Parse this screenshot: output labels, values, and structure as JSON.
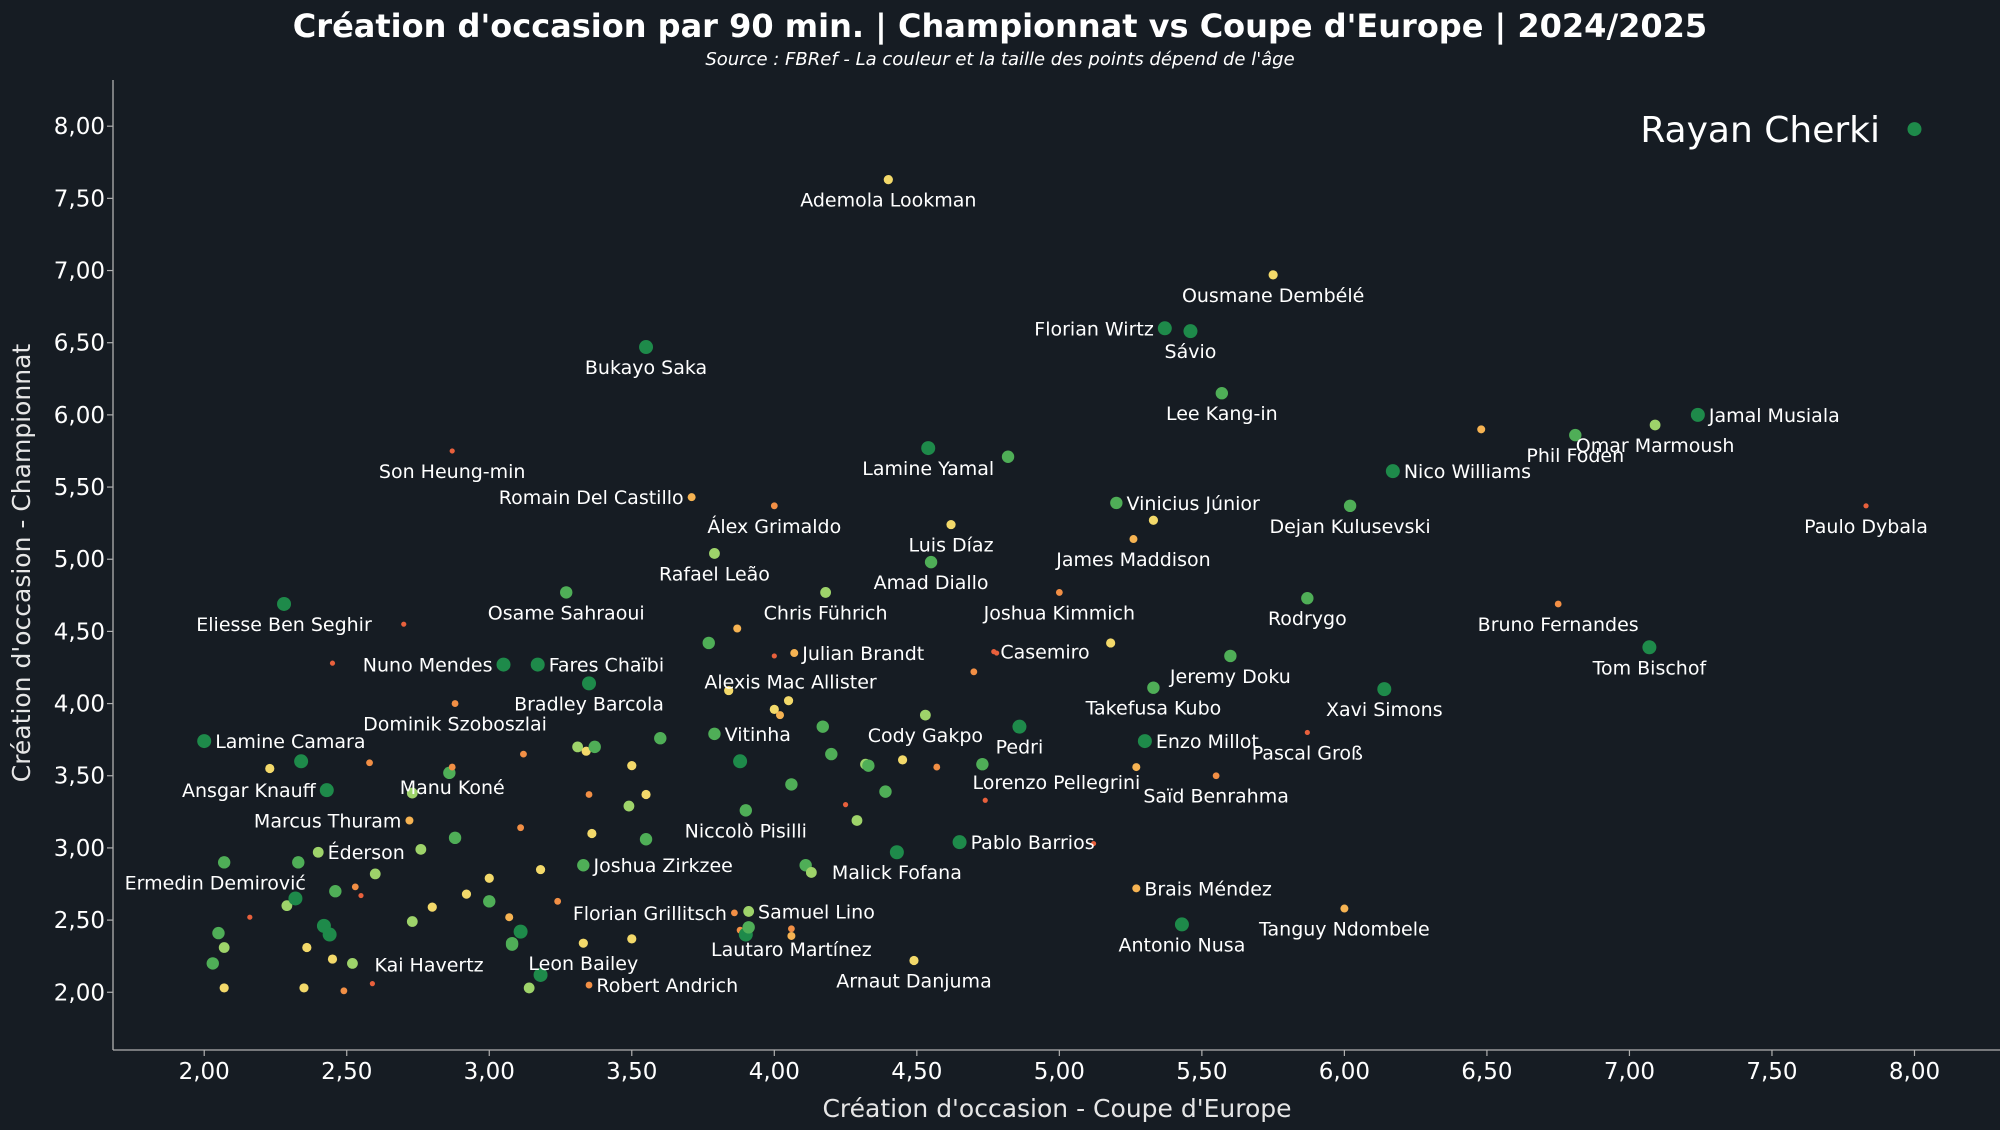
{
  "colors": {
    "background": "#161c23",
    "axis": "#b0b0b0",
    "text": "#ffffff"
  },
  "age_colors": [
    "#1e8a4a",
    "#4fae57",
    "#9ed36a",
    "#f3d96a",
    "#f6b352",
    "#f28f45",
    "#e8603c"
  ],
  "chart_data": {
    "type": "scatter",
    "title": "Création d'occasion par 90 min. | Championnat vs Coupe d'Europe | 2024/2025",
    "subtitle": "Source : FBRef - La couleur et la taille des points dépend de l'âge",
    "xlabel": "Création d'occasion - Coupe d'Europe",
    "ylabel": "Création d'occasion - Championnat",
    "xlim": [
      1.68,
      8.3
    ],
    "ylim": [
      1.6,
      8.32
    ],
    "xticks": [
      {
        "v": 2.0,
        "label": "2,00"
      },
      {
        "v": 2.5,
        "label": "2,50"
      },
      {
        "v": 3.0,
        "label": "3,00"
      },
      {
        "v": 3.5,
        "label": "3,50"
      },
      {
        "v": 4.0,
        "label": "4,00"
      },
      {
        "v": 4.5,
        "label": "4,50"
      },
      {
        "v": 5.0,
        "label": "5,00"
      },
      {
        "v": 5.5,
        "label": "5,50"
      },
      {
        "v": 6.0,
        "label": "6,00"
      },
      {
        "v": 6.5,
        "label": "6,50"
      },
      {
        "v": 7.0,
        "label": "7,00"
      },
      {
        "v": 7.5,
        "label": "7,50"
      },
      {
        "v": 8.0,
        "label": "8,00"
      }
    ],
    "yticks": [
      {
        "v": 2.0,
        "label": "2,00"
      },
      {
        "v": 2.5,
        "label": "2,50"
      },
      {
        "v": 3.0,
        "label": "3,00"
      },
      {
        "v": 3.5,
        "label": "3,50"
      },
      {
        "v": 4.0,
        "label": "4,00"
      },
      {
        "v": 4.5,
        "label": "4,50"
      },
      {
        "v": 5.0,
        "label": "5,00"
      },
      {
        "v": 5.5,
        "label": "5,50"
      },
      {
        "v": 6.0,
        "label": "6,00"
      },
      {
        "v": 6.5,
        "label": "6,50"
      },
      {
        "v": 7.0,
        "label": "7,00"
      },
      {
        "v": 7.5,
        "label": "7,50"
      },
      {
        "v": 8.0,
        "label": "8,00"
      }
    ],
    "legend": {
      "label": "Rayan Cherki",
      "x": 8.0,
      "y": 7.98,
      "age": 0
    },
    "labeled_points": [
      {
        "name": "Ademola Lookman",
        "x": 4.4,
        "y": 7.63,
        "age": 3,
        "anchor": "below"
      },
      {
        "name": "Ousmane Dembélé",
        "x": 5.75,
        "y": 6.97,
        "age": 3,
        "anchor": "below"
      },
      {
        "name": "Florian Wirtz",
        "x": 5.37,
        "y": 6.6,
        "age": 0,
        "anchor": "left"
      },
      {
        "name": "Sávio",
        "x": 5.46,
        "y": 6.58,
        "age": 0,
        "anchor": "below"
      },
      {
        "name": "Bukayo Saka",
        "x": 3.55,
        "y": 6.47,
        "age": 0,
        "anchor": "below"
      },
      {
        "name": "Lee Kang-in",
        "x": 5.57,
        "y": 6.15,
        "age": 1,
        "anchor": "below"
      },
      {
        "name": "Jamal Musiala",
        "x": 7.24,
        "y": 6.0,
        "age": 0,
        "anchor": "right"
      },
      {
        "name": "Phil Foden",
        "x": 6.81,
        "y": 5.86,
        "age": 1,
        "anchor": "below"
      },
      {
        "name": "Omar Marmoush",
        "x": 7.09,
        "y": 5.93,
        "age": 2,
        "anchor": "below"
      },
      {
        "name": "Son Heung-min",
        "x": 2.87,
        "y": 5.75,
        "age": 6,
        "anchor": "below"
      },
      {
        "name": "Lamine Yamal",
        "x": 4.54,
        "y": 5.77,
        "age": 0,
        "anchor": "below"
      },
      {
        "name": "Nico Williams",
        "x": 6.17,
        "y": 5.61,
        "age": 0,
        "anchor": "right"
      },
      {
        "name": "Romain Del Castillo",
        "x": 3.71,
        "y": 5.43,
        "age": 4,
        "anchor": "left"
      },
      {
        "name": "Vinicius Júnior",
        "x": 5.2,
        "y": 5.39,
        "age": 1,
        "anchor": "right"
      },
      {
        "name": "Dejan Kulusevski",
        "x": 6.02,
        "y": 5.37,
        "age": 1,
        "anchor": "below"
      },
      {
        "name": "Paulo Dybala",
        "x": 7.83,
        "y": 5.37,
        "age": 6,
        "anchor": "below"
      },
      {
        "name": "Álex Grimaldo",
        "x": 4.0,
        "y": 5.37,
        "age": 5,
        "anchor": "below"
      },
      {
        "name": "Luis Díaz",
        "x": 4.62,
        "y": 5.24,
        "age": 3,
        "anchor": "below"
      },
      {
        "name": "James Maddison",
        "x": 5.26,
        "y": 5.14,
        "age": 4,
        "anchor": "below"
      },
      {
        "name": "Rafael Leão",
        "x": 3.79,
        "y": 5.04,
        "age": 2,
        "anchor": "below"
      },
      {
        "name": "Amad Diallo",
        "x": 4.55,
        "y": 4.98,
        "age": 1,
        "anchor": "below"
      },
      {
        "name": "Chris Führich",
        "x": 4.18,
        "y": 4.77,
        "age": 2,
        "anchor": "below"
      },
      {
        "name": "Osame Sahraoui",
        "x": 3.27,
        "y": 4.77,
        "age": 1,
        "anchor": "below"
      },
      {
        "name": "Joshua Kimmich",
        "x": 5.0,
        "y": 4.77,
        "age": 5,
        "anchor": "below"
      },
      {
        "name": "Rodrygo",
        "x": 5.87,
        "y": 4.73,
        "age": 1,
        "anchor": "below"
      },
      {
        "name": "Bruno Fernandes",
        "x": 6.75,
        "y": 4.69,
        "age": 5,
        "anchor": "below"
      },
      {
        "name": "Eliesse Ben Seghir",
        "x": 2.28,
        "y": 4.69,
        "age": 0,
        "anchor": "below"
      },
      {
        "name": "Tom Bischof",
        "x": 7.07,
        "y": 4.39,
        "age": 0,
        "anchor": "below"
      },
      {
        "name": "Julian Brandt",
        "x": 4.07,
        "y": 4.35,
        "age": 4,
        "anchor": "right"
      },
      {
        "name": "Casemiro",
        "x": 4.77,
        "y": 4.36,
        "age": 6,
        "anchor": "right"
      },
      {
        "name": "Nuno Mendes",
        "x": 3.05,
        "y": 4.27,
        "age": 0,
        "anchor": "left"
      },
      {
        "name": "Fares Chaïbi",
        "x": 3.17,
        "y": 4.27,
        "age": 0,
        "anchor": "right"
      },
      {
        "name": "Jeremy Doku",
        "x": 5.6,
        "y": 4.33,
        "age": 1,
        "anchor": "below"
      },
      {
        "name": "Alexis Mac Allister",
        "x": 4.05,
        "y": 4.02,
        "age": 3,
        "anchor": "rightabove"
      },
      {
        "name": "Bradley Barcola",
        "x": 3.35,
        "y": 4.14,
        "age": 0,
        "anchor": "below"
      },
      {
        "name": "Xavi Simons",
        "x": 6.14,
        "y": 4.1,
        "age": 0,
        "anchor": "below"
      },
      {
        "name": "Takefusa Kubo",
        "x": 5.33,
        "y": 4.11,
        "age": 1,
        "anchor": "below"
      },
      {
        "name": "Dominik Szoboszlai",
        "x": 2.88,
        "y": 4.0,
        "age": 5,
        "anchor": "below"
      },
      {
        "name": "Lamine Camara",
        "x": 2.0,
        "y": 3.74,
        "age": 0,
        "anchor": "right"
      },
      {
        "name": "Vitinha",
        "x": 3.79,
        "y": 3.79,
        "age": 1,
        "anchor": "right"
      },
      {
        "name": "Cody Gakpo",
        "x": 4.53,
        "y": 3.92,
        "age": 2,
        "anchor": "below"
      },
      {
        "name": "Enzo Millot",
        "x": 5.3,
        "y": 3.74,
        "age": 0,
        "anchor": "right"
      },
      {
        "name": "Pedri",
        "x": 4.86,
        "y": 3.84,
        "age": 0,
        "anchor": "below"
      },
      {
        "name": "Pascal Groß",
        "x": 5.87,
        "y": 3.8,
        "age": 6,
        "anchor": "below"
      },
      {
        "name": "Ansgar Knauff",
        "x": 2.43,
        "y": 3.4,
        "age": 0,
        "anchor": "left"
      },
      {
        "name": "Lorenzo Pellegrini",
        "x": 4.73,
        "y": 3.58,
        "age": 1,
        "anchor": "belowright"
      },
      {
        "name": "Manu Koné",
        "x": 2.87,
        "y": 3.56,
        "age": 5,
        "anchor": "below"
      },
      {
        "name": "Saïd Benrahma",
        "x": 5.55,
        "y": 3.5,
        "age": 5,
        "anchor": "below"
      },
      {
        "name": "Marcus Thuram",
        "x": 2.72,
        "y": 3.19,
        "age": 4,
        "anchor": "left"
      },
      {
        "name": "Niccolò Pisilli",
        "x": 3.9,
        "y": 3.26,
        "age": 1,
        "anchor": "below"
      },
      {
        "name": "Pablo Barrios",
        "x": 4.65,
        "y": 3.04,
        "age": 0,
        "anchor": "right"
      },
      {
        "name": "Éderson",
        "x": 2.4,
        "y": 2.97,
        "age": 2,
        "anchor": "right"
      },
      {
        "name": "Joshua Zirkzee",
        "x": 3.33,
        "y": 2.88,
        "age": 1,
        "anchor": "right"
      },
      {
        "name": "Malick Fofana",
        "x": 4.43,
        "y": 2.97,
        "age": 0,
        "anchor": "below"
      },
      {
        "name": "Ermedin Demirović",
        "x": 2.33,
        "y": 2.9,
        "age": 1,
        "anchor": "belowleft"
      },
      {
        "name": "Brais Méndez",
        "x": 5.27,
        "y": 2.72,
        "age": 4,
        "anchor": "right"
      },
      {
        "name": "Florian Grillitsch",
        "x": 3.86,
        "y": 2.55,
        "age": 5,
        "anchor": "left"
      },
      {
        "name": "Samuel Lino",
        "x": 3.91,
        "y": 2.56,
        "age": 2,
        "anchor": "right"
      },
      {
        "name": "Tanguy Ndombele",
        "x": 6.0,
        "y": 2.58,
        "age": 4,
        "anchor": "below"
      },
      {
        "name": "Antonio Nusa",
        "x": 5.43,
        "y": 2.47,
        "age": 0,
        "anchor": "below"
      },
      {
        "name": "Lautaro Martínez",
        "x": 4.06,
        "y": 2.44,
        "age": 5,
        "anchor": "below"
      },
      {
        "name": "Kai Havertz",
        "x": 3.08,
        "y": 2.33,
        "age": 1,
        "anchor": "belowleft"
      },
      {
        "name": "Leon Bailey",
        "x": 3.33,
        "y": 2.34,
        "age": 3,
        "anchor": "below"
      },
      {
        "name": "Arnaut Danjuma",
        "x": 4.49,
        "y": 2.22,
        "age": 3,
        "anchor": "below"
      },
      {
        "name": "Robert Andrich",
        "x": 3.35,
        "y": 2.05,
        "age": 5,
        "anchor": "right"
      }
    ],
    "other_points": [
      {
        "x": 2.05,
        "y": 2.41,
        "age": 1
      },
      {
        "x": 2.07,
        "y": 2.31,
        "age": 2
      },
      {
        "x": 2.03,
        "y": 2.2,
        "age": 1
      },
      {
        "x": 2.07,
        "y": 2.03,
        "age": 3
      },
      {
        "x": 2.07,
        "y": 2.9,
        "age": 1
      },
      {
        "x": 2.16,
        "y": 2.52,
        "age": 6
      },
      {
        "x": 2.23,
        "y": 3.55,
        "age": 3
      },
      {
        "x": 2.29,
        "y": 2.6,
        "age": 2
      },
      {
        "x": 2.32,
        "y": 2.65,
        "age": 0
      },
      {
        "x": 2.34,
        "y": 3.6,
        "age": 0
      },
      {
        "x": 2.36,
        "y": 2.31,
        "age": 3
      },
      {
        "x": 2.35,
        "y": 2.03,
        "age": 3
      },
      {
        "x": 2.42,
        "y": 2.46,
        "age": 0
      },
      {
        "x": 2.44,
        "y": 2.4,
        "age": 0
      },
      {
        "x": 2.45,
        "y": 2.23,
        "age": 3
      },
      {
        "x": 2.46,
        "y": 2.7,
        "age": 1
      },
      {
        "x": 2.45,
        "y": 4.28,
        "age": 6
      },
      {
        "x": 2.49,
        "y": 2.01,
        "age": 5
      },
      {
        "x": 2.52,
        "y": 2.2,
        "age": 2
      },
      {
        "x": 2.53,
        "y": 2.73,
        "age": 5
      },
      {
        "x": 2.55,
        "y": 2.67,
        "age": 6
      },
      {
        "x": 2.58,
        "y": 3.59,
        "age": 5
      },
      {
        "x": 2.6,
        "y": 2.82,
        "age": 2
      },
      {
        "x": 2.59,
        "y": 2.06,
        "age": 6
      },
      {
        "x": 2.7,
        "y": 4.55,
        "age": 6
      },
      {
        "x": 2.73,
        "y": 2.49,
        "age": 2
      },
      {
        "x": 2.73,
        "y": 3.38,
        "age": 2
      },
      {
        "x": 2.76,
        "y": 2.99,
        "age": 2
      },
      {
        "x": 2.8,
        "y": 2.59,
        "age": 3
      },
      {
        "x": 2.86,
        "y": 3.52,
        "age": 1
      },
      {
        "x": 2.88,
        "y": 3.07,
        "age": 1
      },
      {
        "x": 2.92,
        "y": 2.68,
        "age": 3
      },
      {
        "x": 3.0,
        "y": 2.63,
        "age": 1
      },
      {
        "x": 3.0,
        "y": 2.79,
        "age": 3
      },
      {
        "x": 3.07,
        "y": 2.52,
        "age": 4
      },
      {
        "x": 3.08,
        "y": 2.34,
        "age": 1
      },
      {
        "x": 3.11,
        "y": 2.42,
        "age": 0
      },
      {
        "x": 3.11,
        "y": 3.14,
        "age": 5
      },
      {
        "x": 3.12,
        "y": 3.65,
        "age": 5
      },
      {
        "x": 3.14,
        "y": 2.03,
        "age": 2
      },
      {
        "x": 3.18,
        "y": 2.12,
        "age": 0
      },
      {
        "x": 3.18,
        "y": 2.85,
        "age": 3
      },
      {
        "x": 3.24,
        "y": 2.63,
        "age": 5
      },
      {
        "x": 3.31,
        "y": 3.7,
        "age": 2
      },
      {
        "x": 3.34,
        "y": 3.67,
        "age": 3
      },
      {
        "x": 3.35,
        "y": 3.37,
        "age": 5
      },
      {
        "x": 3.36,
        "y": 3.1,
        "age": 3
      },
      {
        "x": 3.37,
        "y": 3.7,
        "age": 1
      },
      {
        "x": 3.49,
        "y": 3.29,
        "age": 2
      },
      {
        "x": 3.5,
        "y": 3.57,
        "age": 3
      },
      {
        "x": 3.55,
        "y": 3.06,
        "age": 1
      },
      {
        "x": 3.55,
        "y": 3.37,
        "age": 3
      },
      {
        "x": 3.6,
        "y": 3.76,
        "age": 1
      },
      {
        "x": 3.5,
        "y": 2.37,
        "age": 3
      },
      {
        "x": 3.77,
        "y": 4.42,
        "age": 1
      },
      {
        "x": 3.84,
        "y": 4.09,
        "age": 3
      },
      {
        "x": 3.88,
        "y": 3.6,
        "age": 0
      },
      {
        "x": 3.87,
        "y": 4.52,
        "age": 4
      },
      {
        "x": 3.88,
        "y": 2.43,
        "age": 5
      },
      {
        "x": 3.9,
        "y": 2.4,
        "age": 0
      },
      {
        "x": 3.91,
        "y": 2.45,
        "age": 1
      },
      {
        "x": 4.0,
        "y": 4.33,
        "age": 6
      },
      {
        "x": 4.0,
        "y": 3.96,
        "age": 3
      },
      {
        "x": 4.02,
        "y": 3.92,
        "age": 4
      },
      {
        "x": 4.06,
        "y": 3.44,
        "age": 1
      },
      {
        "x": 4.06,
        "y": 2.39,
        "age": 4
      },
      {
        "x": 4.11,
        "y": 2.88,
        "age": 1
      },
      {
        "x": 4.13,
        "y": 2.83,
        "age": 2
      },
      {
        "x": 4.17,
        "y": 3.84,
        "age": 1
      },
      {
        "x": 4.2,
        "y": 3.65,
        "age": 1
      },
      {
        "x": 4.25,
        "y": 3.3,
        "age": 6
      },
      {
        "x": 4.29,
        "y": 3.19,
        "age": 2
      },
      {
        "x": 4.32,
        "y": 3.58,
        "age": 2
      },
      {
        "x": 4.33,
        "y": 3.57,
        "age": 1
      },
      {
        "x": 4.39,
        "y": 3.39,
        "age": 1
      },
      {
        "x": 4.45,
        "y": 3.61,
        "age": 3
      },
      {
        "x": 4.57,
        "y": 3.56,
        "age": 5
      },
      {
        "x": 4.7,
        "y": 4.22,
        "age": 5
      },
      {
        "x": 4.74,
        "y": 3.33,
        "age": 6
      },
      {
        "x": 4.78,
        "y": 4.35,
        "age": 6
      },
      {
        "x": 4.82,
        "y": 5.71,
        "age": 1
      },
      {
        "x": 5.12,
        "y": 3.03,
        "age": 6
      },
      {
        "x": 5.18,
        "y": 4.42,
        "age": 3
      },
      {
        "x": 5.33,
        "y": 5.27,
        "age": 3
      },
      {
        "x": 5.27,
        "y": 3.56,
        "age": 4
      },
      {
        "x": 6.48,
        "y": 5.9,
        "age": 4
      }
    ]
  }
}
